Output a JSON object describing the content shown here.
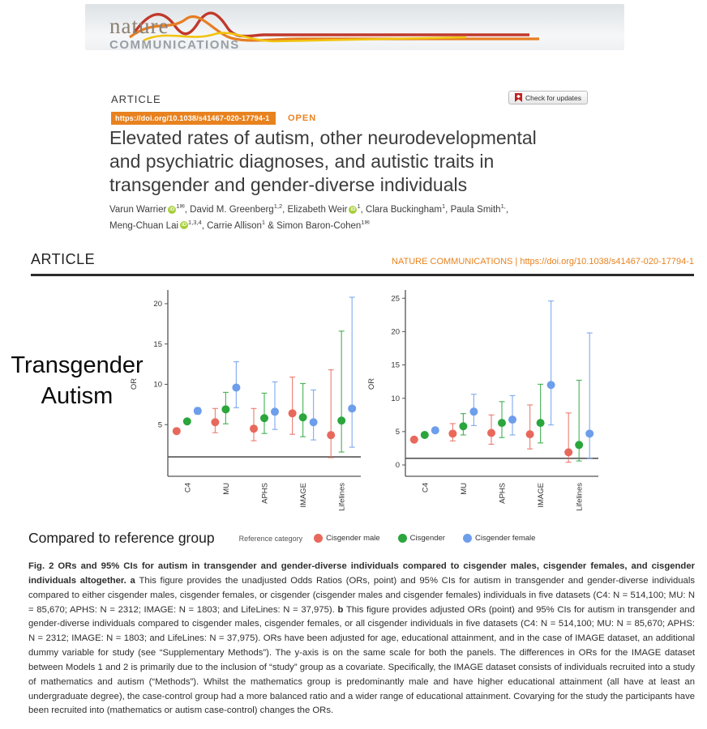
{
  "page": {
    "journal_logo": {
      "name_top": "nature",
      "name_bottom": "COMMUNICATIONS"
    },
    "article_label": "ARTICLE",
    "doi_badge": "https://doi.org/10.1038/s41467-020-17794-1",
    "open_label": "OPEN",
    "check_updates_label": "Check for updates",
    "title_lines": [
      "Elevated rates of autism, other neurodevelopmental",
      "and psychiatric diagnoses, and autistic traits in",
      "transgender and gender-diverse individuals"
    ],
    "authors": [
      {
        "name": "Varun Warrier",
        "orcid": true,
        "sup": "1✉",
        "break_after": false
      },
      {
        "name": "David M. Greenberg",
        "orcid": false,
        "sup": "1,2",
        "break_after": false
      },
      {
        "name": "Elizabeth Weir",
        "orcid": true,
        "sup": "1",
        "break_after": false
      },
      {
        "name": "Clara Buckingham",
        "orcid": false,
        "sup": "1",
        "break_after": false
      },
      {
        "name": "Paula Smith",
        "orcid": false,
        "sup": "1,",
        "break_after": true
      },
      {
        "name": "Meng-Chuan Lai",
        "orcid": true,
        "sup": "1,3,4",
        "break_after": false
      },
      {
        "name": "Carrie Allison",
        "orcid": false,
        "sup": "1",
        "break_after": false
      },
      {
        "name": "Simon Baron-Cohen",
        "orcid": false,
        "sup": "1✉",
        "break_after": false
      }
    ],
    "running_header": {
      "left": "ARTICLE",
      "right": "NATURE COMMUNICATIONS | https://doi.org/10.1038/s41467-020-17794-1"
    },
    "overlay_label_lines": [
      "Transgender",
      "Autism"
    ],
    "legend": {
      "compared_label": "Compared to reference group",
      "reference_label": "Reference category",
      "items": [
        {
          "label": "Cisgender male",
          "color": "#e8695c"
        },
        {
          "label": "Cisgender",
          "color": "#2aa63c"
        },
        {
          "label": "Cisgender female",
          "color": "#6d9eeb"
        }
      ]
    },
    "caption_segments": [
      {
        "style": "bold",
        "text": "Fig. 2 ORs and 95% CIs for autism in transgender and gender-diverse individuals compared to cisgender males, cisgender females, and cisgender individuals altogether. "
      },
      {
        "style": "bold",
        "text": "a "
      },
      {
        "style": "normal",
        "text": "This figure provides the unadjusted Odds Ratios (ORs, point) and 95% CIs for autism in transgender and gender-diverse individuals compared to either cisgender males, cisgender females, or cisgender (cisgender males and cisgender females) individuals in five datasets (C4: N = 514,100; MU: N = 85,670; APHS: N = 2312; IMAGE: N = 1803; and LifeLines: N = 37,975). "
      },
      {
        "style": "bold",
        "text": "b "
      },
      {
        "style": "normal",
        "text": "This figure provides adjusted ORs (point) and 95% CIs for autism in transgender and gender-diverse individuals compared to cisgender males, cisgender females, or all cisgender individuals in five datasets (C4: N = 514,100; MU: N = 85,670; APHS: N = 2312; IMAGE: N = 1803; and LifeLines: N = 37,975). ORs have been adjusted for age, educational attainment, and in the case of IMAGE dataset, an additional dummy variable for study (see “Supplementary Methods”). The y-axis is on the same scale for both the panels. The differences in ORs for the IMAGE dataset between Models 1 and 2 is primarily due to the inclusion of “study” group as a covariate. Specifically, the IMAGE dataset consists of individuals recruited into a study of mathematics and autism (“Methods”). Whilst the mathematics group is predominantly male and have higher educational attainment (all have at least an undergraduate degree), the case-control group had a more balanced ratio and a wider range of educational attainment. Covarying for the study the participants have been recruited into (mathematics or autism case-control) changes the ORs."
      }
    ],
    "colors": {
      "accent_orange": "#e8821f",
      "rule_dark": "#2b2b2b",
      "reference_line": "#555555"
    }
  },
  "chart_data": [
    {
      "type": "scatter",
      "panel": "a",
      "ylabel": "OR",
      "ylim": [
        0,
        21.5
      ],
      "yticks": [
        5,
        10,
        15,
        20
      ],
      "reference_line": 1,
      "grid": false,
      "categories": [
        "C4",
        "MU",
        "APHS",
        "IMAGE",
        "Lifelines"
      ],
      "series": [
        {
          "name": "Cisgender male",
          "color": "#e8695c",
          "points": [
            {
              "or": 4.2,
              "lo": 4.0,
              "hi": 4.4
            },
            {
              "or": 5.3,
              "lo": 4.0,
              "hi": 7.0
            },
            {
              "or": 4.5,
              "lo": 3.0,
              "hi": 7.0
            },
            {
              "or": 6.4,
              "lo": 3.8,
              "hi": 10.9
            },
            {
              "or": 3.7,
              "lo": 0.9,
              "hi": 11.8
            }
          ]
        },
        {
          "name": "Cisgender",
          "color": "#2aa63c",
          "points": [
            {
              "or": 5.4,
              "lo": 5.2,
              "hi": 5.7
            },
            {
              "or": 6.9,
              "lo": 5.1,
              "hi": 9.0
            },
            {
              "or": 5.8,
              "lo": 3.9,
              "hi": 8.9
            },
            {
              "or": 5.9,
              "lo": 3.5,
              "hi": 10.1
            },
            {
              "or": 5.5,
              "lo": 1.6,
              "hi": 16.6
            }
          ]
        },
        {
          "name": "Cisgender female",
          "color": "#6d9eeb",
          "points": [
            {
              "or": 6.7,
              "lo": 6.3,
              "hi": 7.1
            },
            {
              "or": 9.6,
              "lo": 7.1,
              "hi": 12.8
            },
            {
              "or": 6.6,
              "lo": 4.4,
              "hi": 10.3
            },
            {
              "or": 5.3,
              "lo": 3.1,
              "hi": 9.3
            },
            {
              "or": 7.0,
              "lo": 2.2,
              "hi": 20.8
            }
          ]
        }
      ]
    },
    {
      "type": "scatter",
      "panel": "b",
      "ylabel": "OR",
      "ylim": [
        0,
        26
      ],
      "yticks": [
        0,
        5,
        10,
        15,
        20,
        25
      ],
      "reference_line": 1,
      "grid": false,
      "categories": [
        "C4",
        "MU",
        "APHS",
        "IMAGE",
        "Lifelines"
      ],
      "series": [
        {
          "name": "Cisgender male",
          "color": "#e8695c",
          "points": [
            {
              "or": 3.8,
              "lo": 3.6,
              "hi": 4.0
            },
            {
              "or": 4.7,
              "lo": 3.6,
              "hi": 6.2
            },
            {
              "or": 4.8,
              "lo": 3.1,
              "hi": 7.5
            },
            {
              "or": 4.6,
              "lo": 2.4,
              "hi": 9.0
            },
            {
              "or": 1.9,
              "lo": 0.4,
              "hi": 7.8
            }
          ]
        },
        {
          "name": "Cisgender",
          "color": "#2aa63c",
          "points": [
            {
              "or": 4.5,
              "lo": 4.3,
              "hi": 4.7
            },
            {
              "or": 5.8,
              "lo": 4.5,
              "hi": 7.7
            },
            {
              "or": 6.3,
              "lo": 4.1,
              "hi": 9.5
            },
            {
              "or": 6.3,
              "lo": 3.3,
              "hi": 12.1
            },
            {
              "or": 3.0,
              "lo": 0.6,
              "hi": 12.7
            }
          ]
        },
        {
          "name": "Cisgender female",
          "color": "#6d9eeb",
          "points": [
            {
              "or": 5.2,
              "lo": 4.9,
              "hi": 5.5
            },
            {
              "or": 8.0,
              "lo": 5.9,
              "hi": 10.6
            },
            {
              "or": 6.8,
              "lo": 4.5,
              "hi": 10.4
            },
            {
              "or": 12.0,
              "lo": 6.0,
              "hi": 24.6
            },
            {
              "or": 4.7,
              "lo": 1.0,
              "hi": 19.8
            }
          ]
        }
      ]
    }
  ]
}
